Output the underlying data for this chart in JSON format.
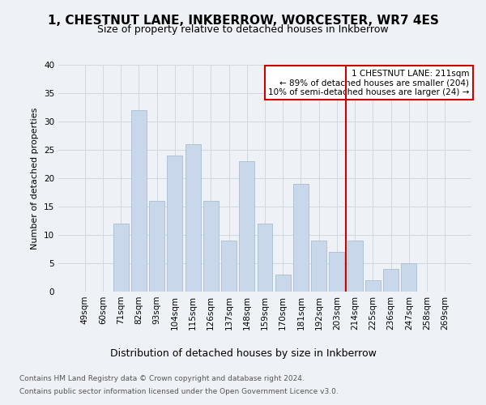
{
  "title": "1, CHESTNUT LANE, INKBERROW, WORCESTER, WR7 4ES",
  "subtitle": "Size of property relative to detached houses in Inkberrow",
  "xlabel": "Distribution of detached houses by size in Inkberrow",
  "ylabel": "Number of detached properties",
  "categories": [
    "49sqm",
    "60sqm",
    "71sqm",
    "82sqm",
    "93sqm",
    "104sqm",
    "115sqm",
    "126sqm",
    "137sqm",
    "148sqm",
    "159sqm",
    "170sqm",
    "181sqm",
    "192sqm",
    "203sqm",
    "214sqm",
    "225sqm",
    "236sqm",
    "247sqm",
    "258sqm",
    "269sqm"
  ],
  "values": [
    0,
    0,
    12,
    32,
    16,
    24,
    26,
    16,
    9,
    23,
    12,
    3,
    19,
    9,
    7,
    9,
    2,
    4,
    5,
    0,
    0
  ],
  "bar_color": "#c8d8ea",
  "bar_edge_color": "#a8bece",
  "grid_color": "#d0d8e0",
  "bg_color": "#eef2f6",
  "vline_color": "#cc0000",
  "annotation_text": "1 CHESTNUT LANE: 211sqm\n← 89% of detached houses are smaller (204)\n10% of semi-detached houses are larger (24) →",
  "annotation_box_color": "#cc0000",
  "ylim": [
    0,
    40
  ],
  "yticks": [
    0,
    5,
    10,
    15,
    20,
    25,
    30,
    35,
    40
  ],
  "footer1": "Contains HM Land Registry data © Crown copyright and database right 2024.",
  "footer2": "Contains public sector information licensed under the Open Government Licence v3.0.",
  "title_fontsize": 11,
  "subtitle_fontsize": 9,
  "xlabel_fontsize": 9,
  "ylabel_fontsize": 8,
  "tick_fontsize": 7.5,
  "annot_fontsize": 7.5,
  "footer_fontsize": 6.5
}
